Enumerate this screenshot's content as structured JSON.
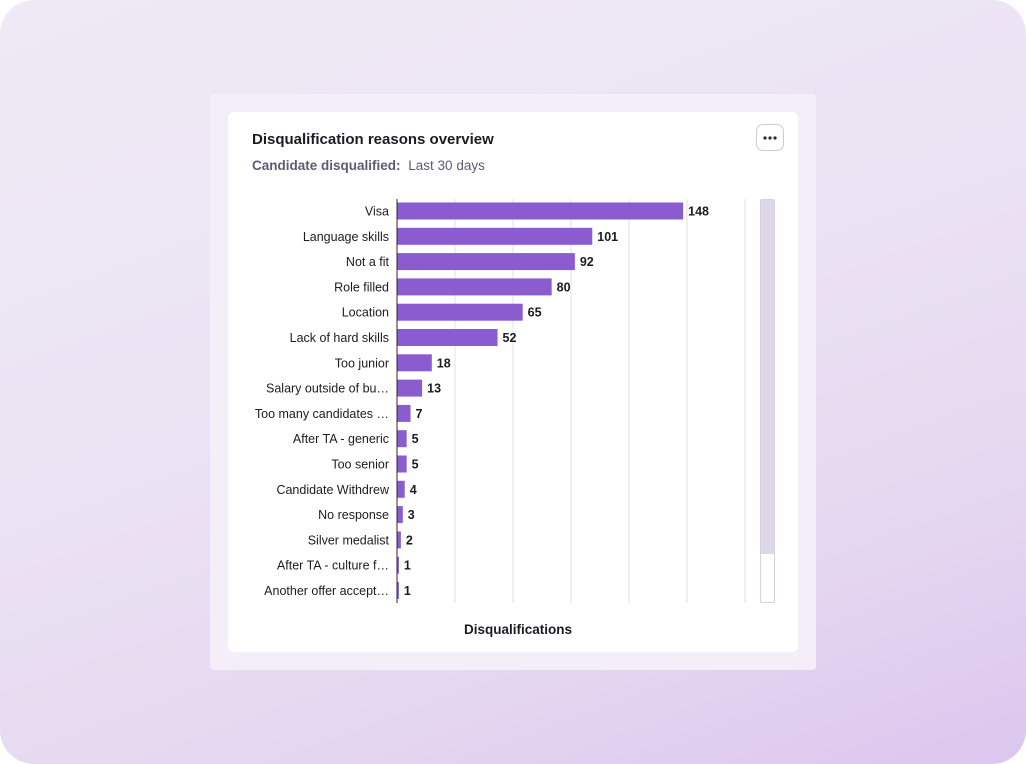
{
  "card": {
    "title": "Disqualification reasons overview",
    "subtitle_label": "Candidate disqualified:",
    "subtitle_period": "Last 30 days",
    "more_icon": "ellipsis-icon"
  },
  "colors": {
    "bar": "#8b5cd0",
    "grid": "#e2e0e6",
    "axis": "#2a2730",
    "scroll_thumb": "#ddd8e6"
  },
  "scrollbar": {
    "thumb_fraction": 0.88
  },
  "chart_data": {
    "type": "bar",
    "orientation": "horizontal",
    "title": "Disqualification reasons overview",
    "xlabel": "Disqualifications",
    "ylabel": "",
    "xlim": [
      0,
      180
    ],
    "grid": true,
    "categories": [
      "Visa",
      "Language skills",
      "Not a fit",
      "Role filled",
      "Location",
      "Lack of hard skills",
      "Too junior",
      "Salary outside of bu…",
      "Too many candidates …",
      "After TA - generic",
      "Too senior",
      "Candidate Withdrew",
      "No response",
      "Silver medalist",
      "After TA - culture f…",
      "Another offer accept…"
    ],
    "values": [
      148,
      101,
      92,
      80,
      65,
      52,
      18,
      13,
      7,
      5,
      5,
      4,
      3,
      2,
      1,
      1
    ]
  }
}
